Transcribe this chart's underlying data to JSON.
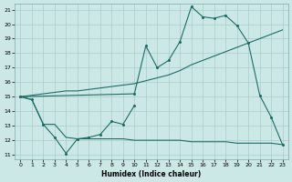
{
  "xlabel": "Humidex (Indice chaleur)",
  "bg_color": "#cce8e6",
  "grid_color": "#aaccca",
  "line_color": "#1a6e64",
  "xlim": [
    -0.5,
    23.5
  ],
  "ylim": [
    10.7,
    21.4
  ],
  "yticks": [
    11,
    12,
    13,
    14,
    15,
    16,
    17,
    18,
    19,
    20,
    21
  ],
  "xticks": [
    0,
    1,
    2,
    3,
    4,
    5,
    6,
    7,
    8,
    9,
    10,
    11,
    12,
    13,
    14,
    15,
    16,
    17,
    18,
    19,
    20,
    21,
    22,
    23
  ],
  "s1_x": [
    0,
    1,
    2,
    3,
    4,
    5,
    6,
    7,
    8,
    9,
    10
  ],
  "s1_y": [
    15.0,
    14.8,
    13.1,
    12.2,
    11.1,
    12.1,
    12.2,
    12.4,
    13.3,
    13.1,
    14.4
  ],
  "s2_x": [
    0,
    1,
    2,
    3,
    4,
    5,
    6,
    7,
    8,
    9,
    10,
    11,
    12,
    13,
    14,
    15,
    16,
    17,
    18,
    19,
    20,
    21,
    22,
    23
  ],
  "s2_y": [
    15.0,
    14.8,
    13.1,
    13.1,
    12.2,
    12.1,
    12.1,
    12.1,
    12.1,
    12.1,
    12.0,
    12.0,
    12.0,
    12.0,
    12.0,
    11.9,
    11.9,
    11.9,
    11.9,
    11.8,
    11.8,
    11.8,
    11.8,
    11.7
  ],
  "s3_x": [
    0,
    1,
    2,
    3,
    4,
    5,
    6,
    7,
    8,
    9,
    10,
    11,
    12,
    13,
    14,
    15,
    16,
    17,
    18,
    19,
    20,
    21,
    22,
    23
  ],
  "s3_y": [
    15.0,
    15.1,
    15.2,
    15.3,
    15.4,
    15.4,
    15.5,
    15.6,
    15.7,
    15.8,
    15.9,
    16.1,
    16.3,
    16.5,
    16.8,
    17.2,
    17.5,
    17.8,
    18.1,
    18.4,
    18.7,
    19.0,
    19.3,
    19.6
  ],
  "s4_x": [
    0,
    10,
    11,
    12,
    13,
    14,
    15,
    16,
    17,
    18,
    19,
    20,
    21,
    22,
    23
  ],
  "s4_y": [
    15.0,
    15.2,
    18.5,
    17.0,
    17.5,
    18.8,
    21.2,
    20.5,
    20.4,
    20.6,
    19.9,
    18.7,
    15.1,
    13.6,
    11.7
  ]
}
